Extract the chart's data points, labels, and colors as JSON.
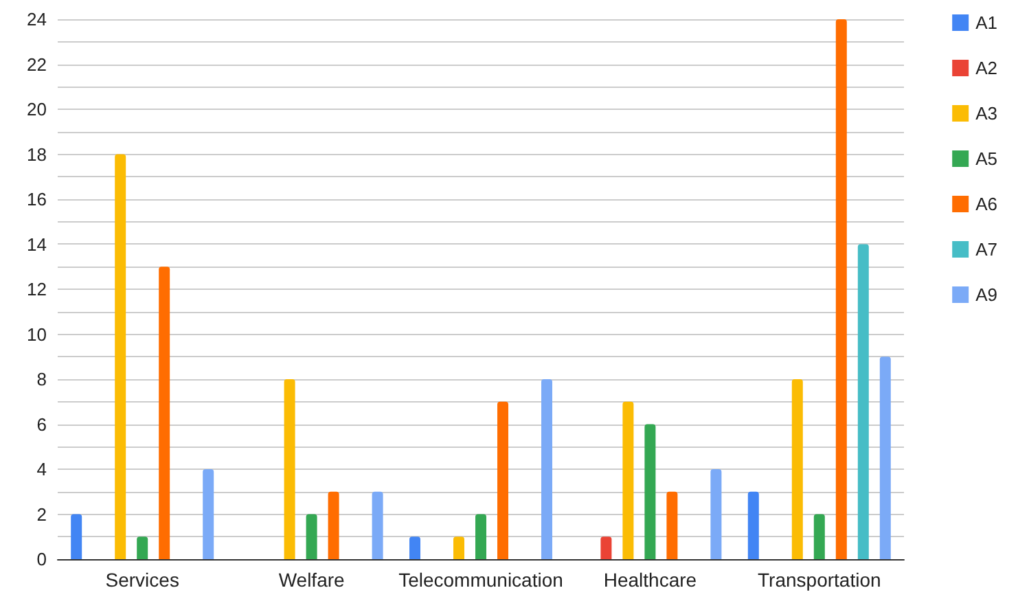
{
  "chart_data": {
    "type": "bar",
    "categories": [
      "Services",
      "Welfare",
      "Telecommunication",
      "Healthcare",
      "Transportation"
    ],
    "series": [
      {
        "name": "A1",
        "color": "#4285f4",
        "values": [
          2,
          0,
          1,
          0,
          3
        ]
      },
      {
        "name": "A2",
        "color": "#ea4335",
        "values": [
          0,
          0,
          0,
          1,
          0
        ]
      },
      {
        "name": "A3",
        "color": "#fbbc04",
        "values": [
          18,
          8,
          1,
          7,
          8
        ]
      },
      {
        "name": "A5",
        "color": "#34a853",
        "values": [
          1,
          2,
          2,
          6,
          2
        ]
      },
      {
        "name": "A6",
        "color": "#ff6d01",
        "values": [
          13,
          3,
          7,
          3,
          24
        ]
      },
      {
        "name": "A7",
        "color": "#46bdc6",
        "values": [
          0,
          0,
          0,
          0,
          14
        ]
      },
      {
        "name": "A9",
        "color": "#7baaf7",
        "values": [
          4,
          3,
          8,
          4,
          9
        ]
      }
    ],
    "ylim": [
      0,
      24
    ],
    "yticks": [
      0,
      {
        "value": 1,
        "label": null
      },
      2,
      {
        "value": 3,
        "label": null
      },
      4,
      {
        "value": 5,
        "label": null
      },
      6,
      {
        "value": 7,
        "label": null
      },
      8,
      {
        "value": 9,
        "label": null
      },
      10,
      {
        "value": 11,
        "label": null
      },
      12,
      {
        "value": 13,
        "label": null
      },
      14,
      {
        "value": 15,
        "label": null
      },
      16,
      {
        "value": 17,
        "label": null
      },
      18,
      {
        "value": 19,
        "label": null
      },
      20,
      {
        "value": 21,
        "label": null
      },
      22,
      {
        "value": 23,
        "label": null
      },
      24
    ],
    "grid": true,
    "legend": "top right"
  }
}
